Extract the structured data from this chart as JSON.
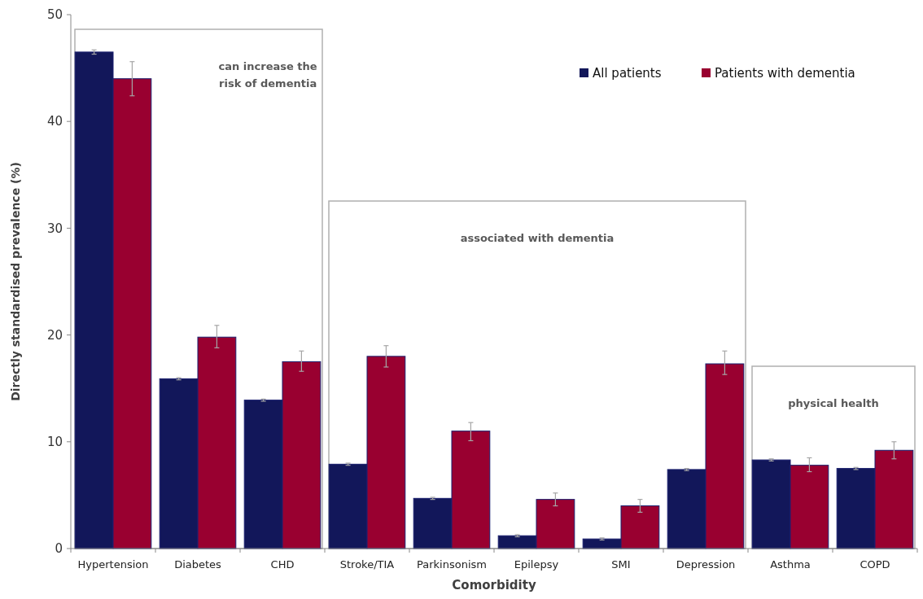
{
  "chart_data": {
    "type": "bar",
    "xlabel": "Comorbidity",
    "ylabel": "Directly standardised prevalence  (%)",
    "categories": [
      "Hypertension",
      "Diabetes",
      "CHD",
      "Stroke/TIA",
      "Parkinsonism",
      "Epilepsy",
      "SMI",
      "Depression",
      "Asthma",
      "COPD"
    ],
    "series": [
      {
        "name": "All patients",
        "color": "#12175a",
        "values": [
          46.5,
          15.9,
          13.9,
          7.9,
          4.7,
          1.2,
          0.9,
          7.4,
          8.3,
          7.5
        ],
        "errors": [
          0.2,
          0.1,
          0.1,
          0.1,
          0.1,
          0.1,
          0.1,
          0.1,
          0.1,
          0.1
        ]
      },
      {
        "name": "Patients with dementia",
        "color": "#990030",
        "values": [
          44.0,
          19.8,
          17.5,
          18.0,
          11.0,
          4.6,
          4.0,
          17.3,
          7.8,
          9.2
        ],
        "errors": [
          [
            42.4,
            45.6
          ],
          [
            18.8,
            20.9
          ],
          [
            16.6,
            18.5
          ],
          [
            17.0,
            19.0
          ],
          [
            10.1,
            11.8
          ],
          [
            4.0,
            5.2
          ],
          [
            3.4,
            4.6
          ],
          [
            16.3,
            18.5
          ],
          [
            7.2,
            8.5
          ],
          [
            8.4,
            10.0
          ]
        ]
      }
    ],
    "ylim": [
      0,
      50
    ],
    "yticks": [
      0,
      10,
      20,
      30,
      40,
      50
    ],
    "grid": false,
    "legend": "top right",
    "annotations": [
      "can increase the\nrisk of dementia",
      "associated with dementia",
      "physical health"
    ]
  }
}
